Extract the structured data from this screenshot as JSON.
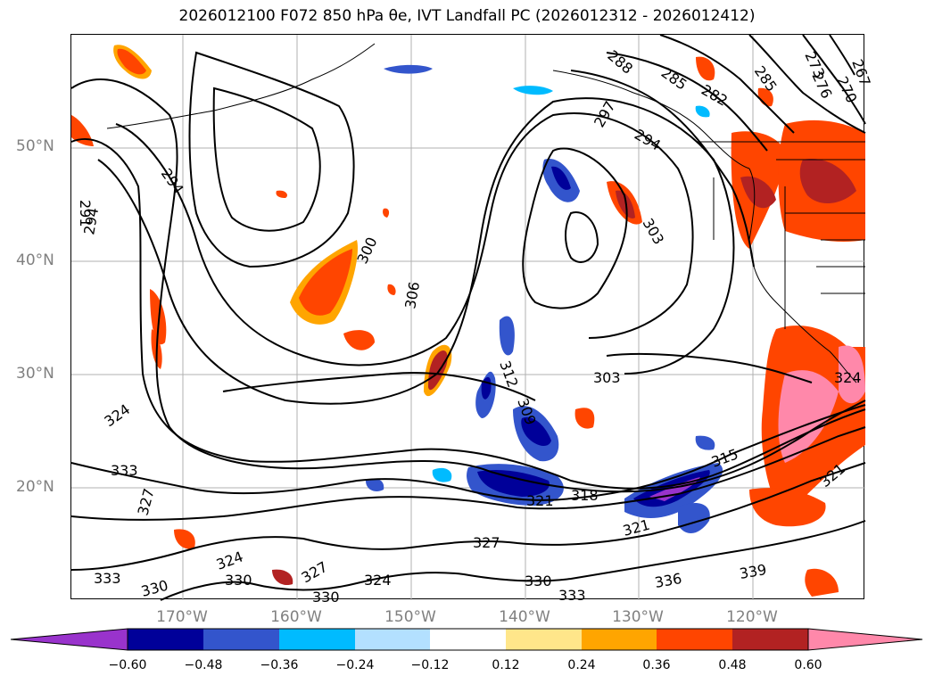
{
  "title": "2026012100 F072 850 hPa θe, IVT Landfall PC (2026012312 - 2026012412)",
  "lat_labels": [
    "50°N",
    "40°N",
    "30°N",
    "20°N"
  ],
  "lon_labels": [
    "170°W",
    "160°W",
    "150°W",
    "140°W",
    "130°W",
    "120°W"
  ],
  "contour_labels": [
    "294",
    "291",
    "294",
    "300",
    "306",
    "303",
    "303",
    "297",
    "294",
    "288",
    "285",
    "282",
    "285",
    "273",
    "276",
    "270",
    "267",
    "312",
    "309",
    "315",
    "318",
    "321",
    "321",
    "324",
    "333",
    "327",
    "327",
    "324",
    "330",
    "333",
    "330",
    "327",
    "324",
    "330",
    "330",
    "333",
    "336",
    "339",
    "321",
    "324"
  ],
  "colorbar": {
    "ticks": [
      "−0.60",
      "−0.48",
      "−0.36",
      "−0.24",
      "−0.12",
      "0.12",
      "0.24",
      "0.36",
      "0.48",
      "0.60"
    ],
    "colors": [
      "#9933cc",
      "#000099",
      "#3355cc",
      "#00bbff",
      "#b3e0ff",
      "#ffffff",
      "#ffe68a",
      "#ffa500",
      "#ff4500",
      "#b22222",
      "#ff88aa"
    ]
  }
}
